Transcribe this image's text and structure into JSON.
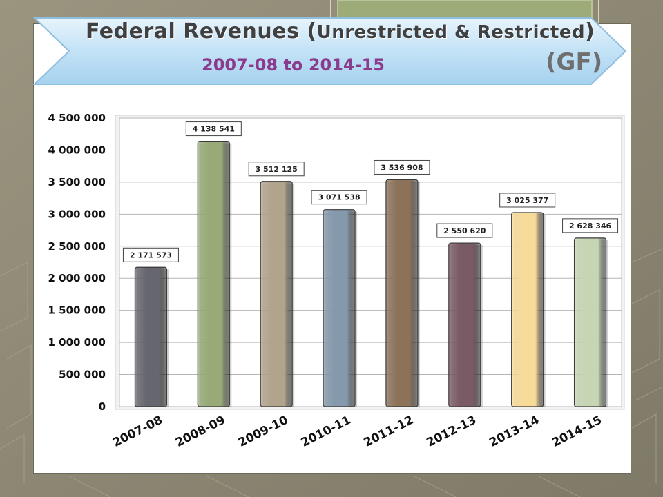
{
  "title_line1_a": "Federal Revenues (",
  "title_line1_b": "Unrestricted & Restricted",
  "title_line1_c": ")",
  "title_line2": "2007-08 to 2014-15",
  "title_tag": "(GF)",
  "colors": {
    "background": "#8f8a76",
    "banner": "#bfe0f5",
    "title_accent": "#8b3b8b"
  },
  "chart_data": {
    "type": "bar",
    "categories": [
      "2007-08",
      "2008-09",
      "2009-10",
      "2010-11",
      "2011-12",
      "2012-13",
      "2013-14",
      "2014-15"
    ],
    "values": [
      2171573,
      4138541,
      3512125,
      3071538,
      3536908,
      2550620,
      3025377,
      2628346
    ],
    "value_labels": [
      "2 171 573",
      "4 138 541",
      "3 512 125",
      "3 071 538",
      "3 536 908",
      "2 550 620",
      "3 025 377",
      "2 628 346"
    ],
    "bar_colors": [
      "#66666e",
      "#97aa78",
      "#b2a38c",
      "#8499ab",
      "#8b7259",
      "#7a5a64",
      "#f8db98",
      "#c6d6b4"
    ],
    "ylim": [
      0,
      4500000
    ],
    "yticks": [
      0,
      500000,
      1000000,
      1500000,
      2000000,
      2500000,
      3000000,
      3500000,
      4000000,
      4500000
    ],
    "ytick_labels": [
      "0",
      "500 000",
      "1 000 000",
      "1 500 000",
      "2 000 000",
      "2 500 000",
      "3 000 000",
      "3 500 000",
      "4 000 000",
      "4 500 000"
    ],
    "title": "Federal Revenues (Unrestricted & Restricted) 2007-08 to 2014-15 (GF)",
    "xlabel": "",
    "ylabel": "",
    "grid": true,
    "legend": false
  }
}
